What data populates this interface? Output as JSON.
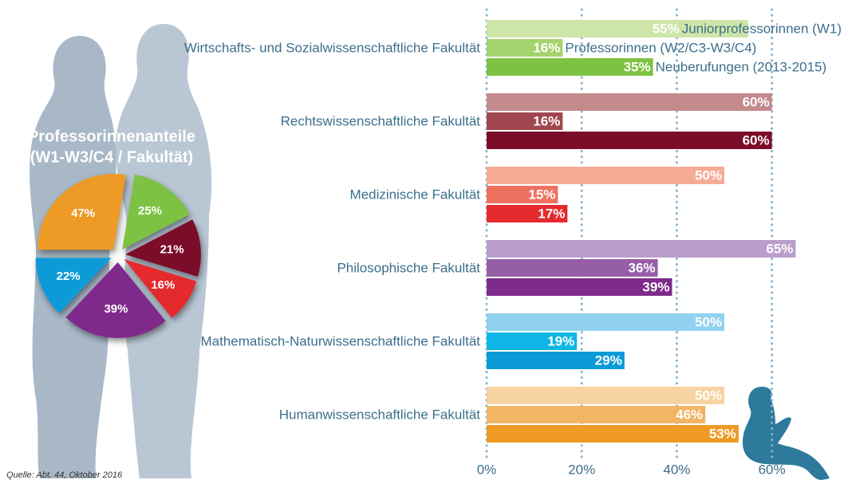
{
  "chart_data": [
    {
      "type": "bar",
      "orientation": "horizontal",
      "categories": [
        "Wirtschafts- und Sozialwissenschaftliche Fakultät",
        "Rechtswissenschaftliche Fakultät",
        "Medizinische Fakultät",
        "Philosophische Fakultät",
        "Mathematisch-Naturwissenschaftliche Fakultät",
        "Humanwissenschaftliche Fakultät"
      ],
      "series": [
        {
          "name": "Juniorprofessorinnen (W1)",
          "colors": [
            "#cde5a8",
            "#c48a8c",
            "#f7ab95",
            "#b99dcb",
            "#90d2ef",
            "#f8d3a2"
          ],
          "values": [
            55,
            60,
            50,
            65,
            50,
            50
          ],
          "value_labels": [
            "55%",
            "60%",
            "50%",
            "65%",
            "50%",
            "50%"
          ]
        },
        {
          "name": "Professorinnen (W2/C3-W3/C4)",
          "colors": [
            "#a5d36d",
            "#a0474f",
            "#ee7160",
            "#975ea8",
            "#10b6e6",
            "#f3b466"
          ],
          "values": [
            16,
            16,
            15,
            36,
            19,
            46
          ],
          "value_labels": [
            "16%",
            "16%",
            "15%",
            "36%",
            "19%",
            "46%"
          ]
        },
        {
          "name": "Neuberufungen (2013-2015)",
          "colors": [
            "#7dc242",
            "#7b0d2a",
            "#e52a2e",
            "#7f2b8b",
            "#0b9bd7",
            "#ee9a25"
          ],
          "values": [
            35,
            60,
            17,
            39,
            29,
            53
          ],
          "value_labels": [
            "35%",
            "60%",
            "17%",
            "39%",
            "29%",
            "53%"
          ]
        }
      ],
      "xlim": [
        0,
        75
      ],
      "xticks": [
        {
          "value": 0,
          "label": "0%"
        },
        {
          "value": 20,
          "label": "20%"
        },
        {
          "value": 40,
          "label": "40%"
        },
        {
          "value": 60,
          "label": "60%"
        }
      ],
      "grid": true,
      "source": "Quelle: Abt. 44, Oktober 2016"
    },
    {
      "type": "pie",
      "title": [
        "Professorinnenanteile",
        "(W1-W3/C4 / Fakultät)"
      ],
      "values": [
        47,
        25,
        21,
        16,
        39,
        22
      ],
      "value_labels": [
        "47%",
        "25%",
        "21%",
        "16%",
        "39%",
        "22%"
      ],
      "colors": [
        "#ee9a25",
        "#7dc242",
        "#7b0d2a",
        "#e52a2e",
        "#7f2b8b",
        "#0b9bd7"
      ]
    }
  ]
}
